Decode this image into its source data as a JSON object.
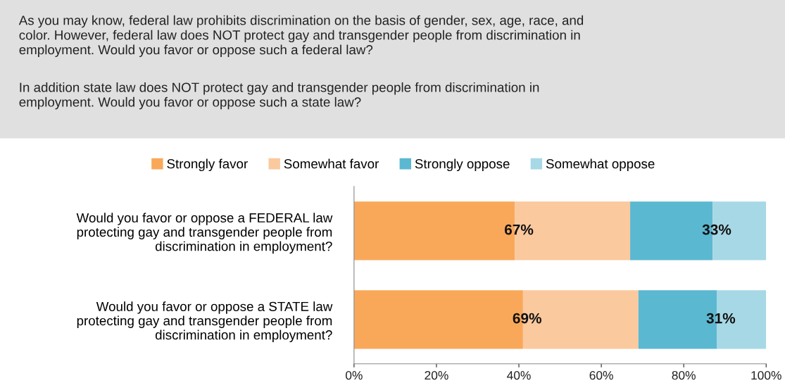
{
  "chart_data": {
    "type": "bar",
    "orientation": "horizontal",
    "stacked": true,
    "title": "As you may know, federal law prohibits discrimination on the basis of gender, sex, age, race, and\ncolor. However, federal law does NOT protect gay and transgender people from discrimination in\nemployment. Would you favor or oppose such a federal law?",
    "subtitle": "In addition state law does NOT protect gay and transgender people from discrimination in\nemployment. Would you favor or oppose such a state law?",
    "categories": [
      "Would you favor or oppose a FEDERAL law\nprotecting gay and transgender people from\ndiscrimination in employment?",
      "Would you favor or oppose a STATE law\nprotecting gay and transgender people from\ndiscrimination in employment?"
    ],
    "series": [
      {
        "name": "Strongly favor",
        "color": "#f9a85a",
        "values": [
          39,
          41
        ]
      },
      {
        "name": "Somewhat favor",
        "color": "#fbc99e",
        "values": [
          28,
          28
        ]
      },
      {
        "name": "Strongly oppose",
        "color": "#5bb8d1",
        "values": [
          20,
          19
        ]
      },
      {
        "name": "Somewhat oppose",
        "color": "#a7d8e6",
        "values": [
          13,
          12
        ]
      }
    ],
    "xlim": [
      0,
      100
    ],
    "xticks": [
      {
        "value": 0,
        "label": "0%"
      },
      {
        "value": 20,
        "label": "20%"
      },
      {
        "value": 40,
        "label": "40%"
      },
      {
        "value": 60,
        "label": "60%"
      },
      {
        "value": 80,
        "label": "80%"
      },
      {
        "value": 100,
        "label": "100%"
      }
    ],
    "annotations": [
      "67%",
      "33%",
      "69%",
      "31%"
    ],
    "legend": "top",
    "grid": false
  }
}
